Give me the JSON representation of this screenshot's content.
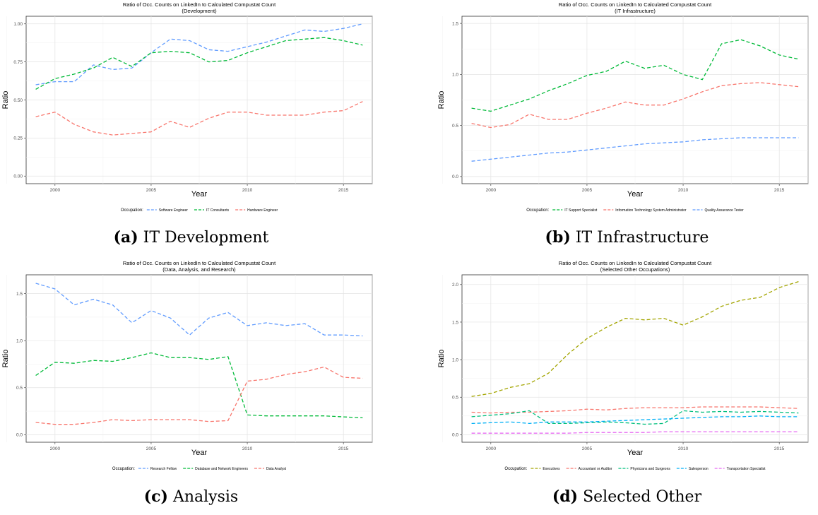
{
  "chart_data": [
    {
      "type": "line",
      "title": "Ratio of Occ. Counts on LinkedIn to Calculated Compustat Count",
      "subtitle": "(Development)",
      "xlabel": "Year",
      "ylabel": "Ratio",
      "xlim": [
        1998.5,
        2016.5
      ],
      "ylim": [
        -0.05,
        1.05
      ],
      "x_ticks": [
        2000,
        2005,
        2010,
        2015
      ],
      "y_ticks": [
        0.0,
        0.25,
        0.5,
        0.75,
        1.0
      ],
      "y_tick_labels": [
        "0.00",
        "0.25",
        "0.50",
        "0.75",
        "1.00"
      ],
      "grid": true,
      "legend_position": "bottom",
      "legend_title": "Occupation:",
      "caption_tag": "(a)",
      "caption": "IT Development",
      "x": [
        1999,
        2000,
        2001,
        2002,
        2003,
        2004,
        2005,
        2006,
        2007,
        2008,
        2009,
        2010,
        2011,
        2012,
        2013,
        2014,
        2015,
        2016
      ],
      "series": [
        {
          "name": "Software Engineer",
          "color": "#619CFF",
          "values": [
            0.6,
            0.62,
            0.62,
            0.73,
            0.7,
            0.71,
            0.81,
            0.9,
            0.89,
            0.83,
            0.82,
            0.85,
            0.88,
            0.92,
            0.96,
            0.95,
            0.97,
            1.0
          ]
        },
        {
          "name": "IT Consultants",
          "color": "#00BA38",
          "values": [
            0.57,
            0.64,
            0.67,
            0.71,
            0.78,
            0.72,
            0.81,
            0.82,
            0.81,
            0.75,
            0.76,
            0.81,
            0.85,
            0.89,
            0.9,
            0.91,
            0.89,
            0.86
          ]
        },
        {
          "name": "Hardware Engineer",
          "color": "#F8766D",
          "values": [
            0.39,
            0.42,
            0.34,
            0.29,
            0.27,
            0.28,
            0.29,
            0.36,
            0.32,
            0.38,
            0.42,
            0.42,
            0.4,
            0.4,
            0.4,
            0.42,
            0.43,
            0.49
          ]
        }
      ]
    },
    {
      "type": "line",
      "title": "Ratio of Occ. Counts on LinkedIn to Calculated Compustat Count",
      "subtitle": "(IT Infrastructure)",
      "xlabel": "Year",
      "ylabel": "Ratio",
      "xlim": [
        1998.5,
        2016.5
      ],
      "ylim": [
        -0.07,
        1.57
      ],
      "x_ticks": [
        2000,
        2005,
        2010,
        2015
      ],
      "y_ticks": [
        0.0,
        0.5,
        1.0,
        1.5
      ],
      "y_tick_labels": [
        "0.0",
        "0.5",
        "1.0",
        "1.5"
      ],
      "grid": true,
      "legend_position": "bottom",
      "legend_title": "Occupation:",
      "caption_tag": "(b)",
      "caption": "IT Infrastructure",
      "x": [
        1999,
        2000,
        2001,
        2002,
        2003,
        2004,
        2005,
        2006,
        2007,
        2008,
        2009,
        2010,
        2011,
        2012,
        2013,
        2014,
        2015,
        2016
      ],
      "series": [
        {
          "name": "IT Support Specialist",
          "color": "#00BA38",
          "values": [
            0.67,
            0.64,
            0.7,
            0.76,
            0.84,
            0.91,
            0.99,
            1.03,
            1.13,
            1.06,
            1.09,
            1.0,
            0.95,
            1.3,
            1.34,
            1.28,
            1.19,
            1.15
          ]
        },
        {
          "name": "Information Technology System Administrator",
          "color": "#F8766D",
          "values": [
            0.52,
            0.48,
            0.51,
            0.61,
            0.56,
            0.56,
            0.62,
            0.67,
            0.73,
            0.7,
            0.7,
            0.76,
            0.83,
            0.89,
            0.91,
            0.92,
            0.9,
            0.88
          ]
        },
        {
          "name": "Quality Assurance Tester",
          "color": "#619CFF",
          "values": [
            0.15,
            0.17,
            0.19,
            0.21,
            0.23,
            0.24,
            0.26,
            0.28,
            0.3,
            0.32,
            0.33,
            0.34,
            0.36,
            0.37,
            0.38,
            0.38,
            0.38,
            0.38
          ]
        }
      ]
    },
    {
      "type": "line",
      "title": "Ratio of Occ. Counts on LinkedIn to Calculated Compustat Count",
      "subtitle": "(Data, Analysis, and Research)",
      "xlabel": "Year",
      "ylabel": "Ratio",
      "xlim": [
        1998.5,
        2016.5
      ],
      "ylim": [
        -0.08,
        1.7
      ],
      "x_ticks": [
        2000,
        2005,
        2010,
        2015
      ],
      "y_ticks": [
        0.0,
        0.5,
        1.0,
        1.5
      ],
      "y_tick_labels": [
        "0.0",
        "0.5",
        "1.0",
        "1.5"
      ],
      "grid": true,
      "legend_position": "bottom",
      "legend_title": "Occupation:",
      "caption_tag": "(c)",
      "caption": "Analysis",
      "x": [
        1999,
        2000,
        2001,
        2002,
        2003,
        2004,
        2005,
        2006,
        2007,
        2008,
        2009,
        2010,
        2011,
        2012,
        2013,
        2014,
        2015,
        2016
      ],
      "series": [
        {
          "name": "Research Fellow",
          "color": "#619CFF",
          "values": [
            1.61,
            1.55,
            1.38,
            1.44,
            1.38,
            1.19,
            1.32,
            1.24,
            1.06,
            1.24,
            1.3,
            1.16,
            1.19,
            1.16,
            1.18,
            1.06,
            1.06,
            1.05
          ]
        },
        {
          "name": "Database and Network Engineers",
          "color": "#00BA38",
          "values": [
            0.63,
            0.77,
            0.76,
            0.79,
            0.78,
            0.82,
            0.87,
            0.82,
            0.82,
            0.8,
            0.83,
            0.21,
            0.2,
            0.2,
            0.2,
            0.2,
            0.19,
            0.18
          ]
        },
        {
          "name": "Data Analyst",
          "color": "#F8766D",
          "values": [
            0.13,
            0.11,
            0.11,
            0.13,
            0.16,
            0.15,
            0.16,
            0.16,
            0.16,
            0.14,
            0.15,
            0.57,
            0.59,
            0.64,
            0.67,
            0.72,
            0.61,
            0.6
          ]
        }
      ]
    },
    {
      "type": "line",
      "title": "Ratio of Occ. Counts on LinkedIn to Calculated Compustat Count",
      "subtitle": "(Selected Other Occupations)",
      "xlabel": "Year",
      "ylabel": "Ratio",
      "xlim": [
        1998.5,
        2016.5
      ],
      "ylim": [
        -0.1,
        2.13
      ],
      "x_ticks": [
        2000,
        2005,
        2010,
        2015
      ],
      "y_ticks": [
        0.0,
        0.5,
        1.0,
        1.5,
        2.0
      ],
      "y_tick_labels": [
        "0.0",
        "0.5",
        "1.0",
        "1.5",
        "2.0"
      ],
      "grid": true,
      "legend_position": "bottom",
      "legend_title": "Occupation:",
      "caption_tag": "(d)",
      "caption": "Selected Other",
      "x": [
        1999,
        2000,
        2001,
        2002,
        2003,
        2004,
        2005,
        2006,
        2007,
        2008,
        2009,
        2010,
        2011,
        2012,
        2013,
        2014,
        2015,
        2016
      ],
      "series": [
        {
          "name": "Executives",
          "color": "#A3A500",
          "values": [
            0.51,
            0.55,
            0.63,
            0.68,
            0.82,
            1.07,
            1.28,
            1.43,
            1.55,
            1.53,
            1.55,
            1.46,
            1.57,
            1.71,
            1.79,
            1.83,
            1.96,
            2.04
          ]
        },
        {
          "name": "Accountant or Auditor",
          "color": "#F8766D",
          "values": [
            0.3,
            0.29,
            0.3,
            0.3,
            0.31,
            0.32,
            0.34,
            0.33,
            0.35,
            0.36,
            0.36,
            0.36,
            0.37,
            0.37,
            0.37,
            0.37,
            0.36,
            0.35
          ]
        },
        {
          "name": "Physicians and Surgeons",
          "color": "#00BF7D",
          "values": [
            0.24,
            0.26,
            0.28,
            0.32,
            0.15,
            0.15,
            0.16,
            0.17,
            0.16,
            0.14,
            0.15,
            0.32,
            0.3,
            0.31,
            0.3,
            0.31,
            0.3,
            0.29
          ]
        },
        {
          "name": "Salesperson",
          "color": "#00B0F6",
          "values": [
            0.15,
            0.16,
            0.17,
            0.15,
            0.17,
            0.17,
            0.17,
            0.18,
            0.19,
            0.2,
            0.21,
            0.22,
            0.23,
            0.24,
            0.24,
            0.25,
            0.24,
            0.24
          ]
        },
        {
          "name": "Transportation Specialist",
          "color": "#E76BF3",
          "values": [
            0.02,
            0.02,
            0.02,
            0.02,
            0.02,
            0.02,
            0.03,
            0.03,
            0.03,
            0.03,
            0.04,
            0.04,
            0.04,
            0.04,
            0.04,
            0.04,
            0.04,
            0.04
          ]
        }
      ]
    }
  ]
}
